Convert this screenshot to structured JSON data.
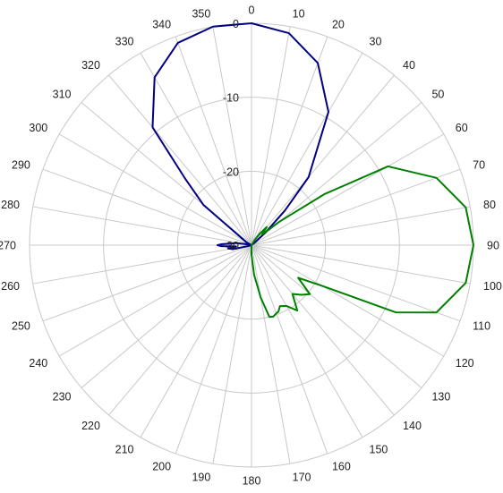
{
  "chart_data": {
    "type": "polar-line",
    "title": "",
    "angle_unit": "degrees",
    "angle_direction": "clockwise",
    "zero_direction": "top",
    "angle_ticks": [
      0,
      10,
      20,
      30,
      40,
      50,
      60,
      70,
      80,
      90,
      100,
      110,
      120,
      130,
      140,
      150,
      160,
      170,
      180,
      190,
      200,
      210,
      220,
      230,
      240,
      250,
      260,
      270,
      280,
      290,
      300,
      310,
      320,
      330,
      340,
      350
    ],
    "angle_tick_labels": [
      "0",
      "10",
      "20",
      "30",
      "40",
      "50",
      "60",
      "70",
      "80",
      "90",
      "100",
      "110",
      "120",
      "130",
      "140",
      "150",
      "160",
      "170",
      "180",
      "190",
      "200",
      "210",
      "220",
      "230",
      "240",
      "250",
      "260",
      "270",
      "280",
      "290",
      "300",
      "310",
      "320",
      "330",
      "340",
      "350"
    ],
    "radial_range": [
      -30,
      0
    ],
    "radial_ticks": [
      0,
      -10,
      -20,
      -30
    ],
    "radial_tick_labels": [
      "0",
      "-10",
      "-20",
      "-30"
    ],
    "grid": true,
    "legend": "none",
    "series": [
      {
        "color": "#000080",
        "angles": [
          0,
          10,
          20,
          30,
          40,
          44,
          48,
          52,
          55,
          60,
          70,
          80,
          90,
          100,
          110,
          120,
          135,
          150,
          165,
          180,
          195,
          210,
          225,
          240,
          250,
          255,
          258,
          262,
          265,
          268,
          270,
          272,
          275,
          278,
          282,
          285,
          290,
          300,
          310,
          315,
          320,
          330,
          340,
          350,
          360
        ],
        "values": [
          0,
          -0.9,
          -3.8,
          -9.2,
          -18.0,
          -23.5,
          -27.5,
          -29.6,
          -30,
          -30,
          -30,
          -30,
          -30,
          -30,
          -30,
          -30,
          -30,
          -30,
          -30,
          -30,
          -30,
          -30,
          -30,
          -30,
          -30,
          -29.5,
          -27.4,
          -26.8,
          -27.9,
          -25.9,
          -25.4,
          -26.0,
          -27.4,
          -27.9,
          -29.4,
          -29.8,
          -30,
          -29.2,
          -21.5,
          -17.4,
          -9.2,
          -3.8,
          -0.9,
          0,
          0
        ]
      },
      {
        "color": "#008000",
        "angles": [
          0,
          10,
          20,
          30,
          32,
          36,
          40,
          45,
          50,
          55,
          60,
          70,
          80,
          90,
          100,
          110,
          115,
          120,
          125,
          130,
          135,
          140,
          145,
          150,
          155,
          158,
          160,
          163,
          166,
          170,
          175,
          180,
          190,
          210,
          240,
          270,
          300,
          330,
          360
        ],
        "values": [
          -30,
          -30,
          -30,
          -30,
          -29.0,
          -28.0,
          -26.8,
          -28.0,
          -25.0,
          -18.0,
          -8.7,
          -3.4,
          -0.6,
          0,
          -0.6,
          -3.4,
          -8.5,
          -19.0,
          -22.3,
          -19.7,
          -20.5,
          -21.4,
          -19.2,
          -20.5,
          -20.9,
          -20.3,
          -20.2,
          -19.9,
          -20.0,
          -22.8,
          -26.0,
          -28.7,
          -30,
          -30,
          -30,
          -30,
          -30,
          -30,
          -30
        ]
      }
    ]
  }
}
